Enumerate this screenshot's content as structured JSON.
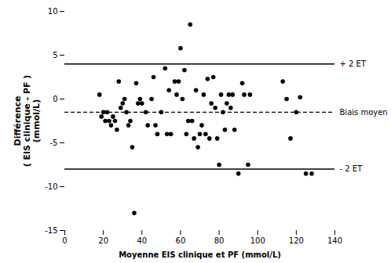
{
  "chart_data": {
    "type": "scatter",
    "x": [
      18,
      19,
      20,
      21,
      22,
      23,
      24,
      25,
      26,
      27,
      28,
      29,
      30,
      31,
      32,
      33,
      34,
      35,
      36,
      37,
      38,
      39,
      40,
      42,
      43,
      45,
      46,
      47,
      48,
      50,
      52,
      53,
      54,
      55,
      57,
      58,
      59,
      60,
      61,
      62,
      63,
      64,
      65,
      66,
      67,
      68,
      69,
      70,
      71,
      72,
      73,
      74,
      75,
      76,
      77,
      78,
      79,
      80,
      81,
      82,
      83,
      84,
      85,
      86,
      87,
      88,
      90,
      92,
      93,
      95,
      96,
      113,
      115,
      117,
      120,
      122,
      125,
      128
    ],
    "values": [
      0.5,
      -2.0,
      -1.5,
      -2.5,
      -1.5,
      -2.5,
      -3.0,
      -2.0,
      -2.5,
      -3.5,
      2.0,
      -1.0,
      -0.5,
      0.0,
      -1.5,
      -3.0,
      -2.5,
      -5.5,
      -13.0,
      1.8,
      -0.5,
      0.0,
      -0.5,
      -1.5,
      -3.0,
      0.0,
      2.5,
      -3.0,
      -4.0,
      -1.5,
      3.5,
      -4.0,
      1.0,
      -4.0,
      2.0,
      0.5,
      2.0,
      5.8,
      0.0,
      3.3,
      -4.0,
      -2.5,
      8.5,
      -2.5,
      -4.5,
      1.0,
      -5.5,
      -4.0,
      -3.0,
      0.5,
      -4.0,
      2.3,
      -4.5,
      -0.5,
      2.5,
      -1.0,
      -4.5,
      -7.5,
      0.5,
      -1.5,
      -3.5,
      -0.5,
      0.5,
      -1.0,
      0.5,
      -3.5,
      -8.5,
      1.8,
      0.5,
      -7.5,
      0.5,
      2.0,
      0.0,
      -4.5,
      -1.5,
      0.2,
      -8.5,
      -8.5
    ],
    "color": "#000000",
    "marker": "circle",
    "xlabel": "Moyenne EIS clinique et PF (mmol/L)",
    "ylabel": "Différence\n( EIS clinique - PF )\n(mmol/L)",
    "xlim": [
      0,
      140
    ],
    "ylim": [
      -15,
      10
    ],
    "xticks": [
      0,
      20,
      40,
      60,
      80,
      100,
      120,
      140
    ],
    "yticks": [
      -15,
      -10,
      -5,
      0,
      5,
      10
    ],
    "grid": false,
    "hlines": [
      {
        "y": 4.0,
        "label": "+ 2 ET",
        "line_style": "solid",
        "color": "#000000"
      },
      {
        "y": -1.5,
        "label": "Biais moyen",
        "line_style": "dashed",
        "color": "#000000"
      },
      {
        "y": -8.0,
        "label": "- 2 ET",
        "line_style": "solid",
        "color": "#000000"
      }
    ]
  }
}
